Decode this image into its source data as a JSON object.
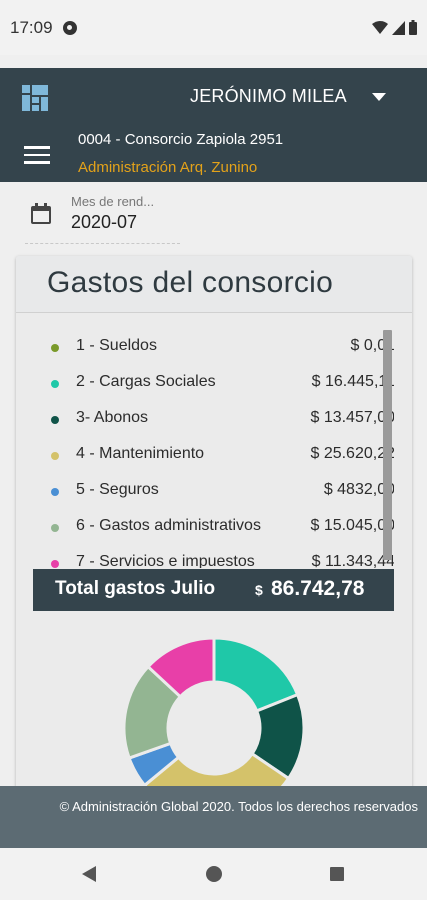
{
  "status_bar": {
    "time": "17:09",
    "icons": [
      "google-icon",
      "wifi-icon",
      "signal-icon",
      "battery-icon"
    ]
  },
  "header": {
    "user_name": "JERÓNIMO MILEA",
    "consorcio": "0004 - Consorcio Zapiola 2951",
    "administracion": "Administración Arq. Zunino",
    "colors": {
      "bar": "#34444c",
      "admin_text": "#e3a21a",
      "logo": "#7fb8d9"
    }
  },
  "month": {
    "label": "Mes de rend...",
    "value": "2020-07"
  },
  "card": {
    "title": "Gastos del consorcio",
    "items": [
      {
        "label": "1 - Sueldos",
        "amount": "$ 0,01",
        "color": "#7a9a2a"
      },
      {
        "label": "2 - Cargas Sociales",
        "amount": "$ 16.445,11",
        "color": "#1fc8a8"
      },
      {
        "label": "3- Abonos",
        "amount": "$ 13.457,00",
        "color": "#0f5348"
      },
      {
        "label": "4 - Mantenimiento",
        "amount": "$ 25.620,22",
        "color": "#d4c26a"
      },
      {
        "label": "5 - Seguros",
        "amount": "$ 4832,00",
        "color": "#4a8fd4"
      },
      {
        "label": "6 - Gastos administrativos",
        "amount": "$ 15.045,00",
        "color": "#93b592"
      },
      {
        "label": "7 - Servicios e impuestos",
        "amount": "$ 11.343,44",
        "color": "#e83fa8"
      }
    ],
    "total_label": "Total gastos Julio",
    "total_currency": "$",
    "total_value": "86.742,78"
  },
  "footer": {
    "text": "© Administración Global 2020. Todos los derechos reservados"
  }
}
